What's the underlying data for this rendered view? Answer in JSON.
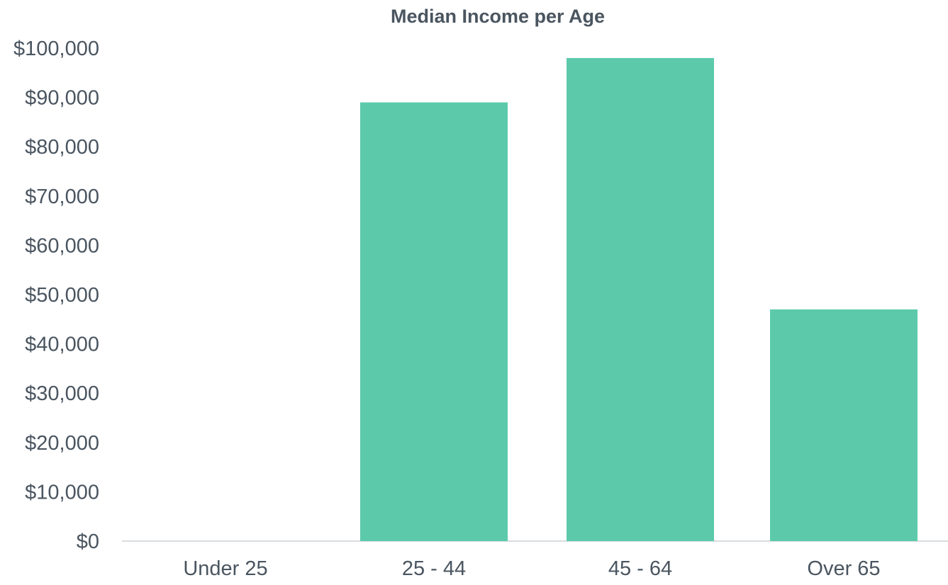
{
  "chart_data": {
    "type": "bar",
    "title": "Median Income per Age",
    "xlabel": "",
    "ylabel": "",
    "categories": [
      "Under 25",
      "25 - 44",
      "45 - 64",
      "Over 65"
    ],
    "values": [
      0,
      89000,
      98000,
      47000
    ],
    "ylim": [
      0,
      100000
    ],
    "yticks": [
      0,
      10000,
      20000,
      30000,
      40000,
      50000,
      60000,
      70000,
      80000,
      90000,
      100000
    ],
    "ytick_labels": [
      "$0",
      "$10,000",
      "$20,000",
      "$30,000",
      "$40,000",
      "$50,000",
      "$60,000",
      "$70,000",
      "$80,000",
      "$90,000",
      "$100,000"
    ],
    "grid": false,
    "legend": "none",
    "bar_color": "#5ccaaa"
  }
}
